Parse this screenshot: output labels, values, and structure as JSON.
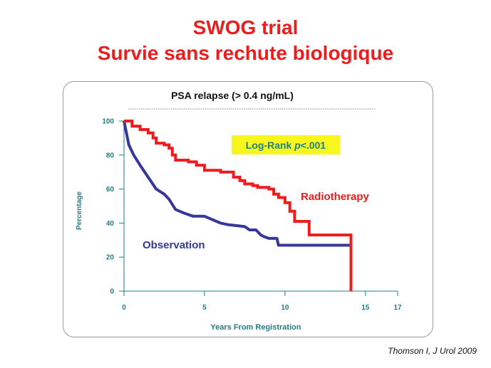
{
  "slide": {
    "title_line1": "SWOG trial",
    "title_line2": "Survie sans rechute biologique",
    "citation": "Thomson I, J Urol 2009"
  },
  "colors": {
    "title": "#ee1c1c",
    "axis": "#1f7f86",
    "radiotherapy": "#ee1c1c",
    "observation": "#35379a",
    "logrank_bg": "#f7f71e",
    "logrank_text": "#1f7f86"
  },
  "chart_data": {
    "type": "line",
    "subtitle": "PSA relapse (> 0.4 ng/mL)",
    "xlabel": "Years From Registration",
    "ylabel": "Percentage",
    "xlim": [
      0,
      17
    ],
    "ylim": [
      0,
      100
    ],
    "xticks": [
      0,
      5,
      10,
      15,
      17
    ],
    "yticks": [
      0,
      20,
      40,
      60,
      80,
      100
    ],
    "annotation": "Log-Rank",
    "annotation_p": "p",
    "annotation_value": "<.001",
    "series": [
      {
        "name": "Radiotherapy",
        "step": true,
        "points": [
          [
            0,
            100
          ],
          [
            0.5,
            97
          ],
          [
            1,
            95
          ],
          [
            1.5,
            93
          ],
          [
            1.8,
            90
          ],
          [
            2,
            87
          ],
          [
            2.5,
            86
          ],
          [
            2.8,
            84
          ],
          [
            3,
            80
          ],
          [
            3.2,
            77
          ],
          [
            4,
            76
          ],
          [
            4.5,
            74
          ],
          [
            5,
            71
          ],
          [
            6,
            70
          ],
          [
            6.5,
            70
          ],
          [
            6.8,
            67
          ],
          [
            7.2,
            65
          ],
          [
            7.5,
            63
          ],
          [
            8,
            62
          ],
          [
            8.3,
            61
          ],
          [
            9,
            60
          ],
          [
            9.3,
            57
          ],
          [
            9.6,
            55
          ],
          [
            10,
            52
          ],
          [
            10.3,
            47
          ],
          [
            10.6,
            41
          ],
          [
            11,
            41
          ],
          [
            11.5,
            33
          ],
          [
            12.5,
            33
          ],
          [
            14,
            33
          ],
          [
            14.1,
            0
          ]
        ]
      },
      {
        "name": "Observation",
        "step": false,
        "points": [
          [
            0,
            100
          ],
          [
            0.3,
            86
          ],
          [
            0.6,
            80
          ],
          [
            1,
            74
          ],
          [
            1.5,
            67
          ],
          [
            2,
            60
          ],
          [
            2.5,
            57
          ],
          [
            2.8,
            54
          ],
          [
            3.2,
            48
          ],
          [
            3.7,
            46
          ],
          [
            4.3,
            44
          ],
          [
            5,
            44
          ],
          [
            5.5,
            42
          ],
          [
            6,
            40
          ],
          [
            6.5,
            39
          ],
          [
            7.5,
            38
          ],
          [
            7.8,
            36
          ],
          [
            8.2,
            36
          ],
          [
            8.5,
            33
          ],
          [
            8.7,
            32
          ],
          [
            9,
            31
          ],
          [
            9.5,
            31
          ],
          [
            9.6,
            27
          ],
          [
            10,
            27
          ],
          [
            12,
            27
          ],
          [
            14.1,
            27
          ]
        ]
      }
    ]
  }
}
